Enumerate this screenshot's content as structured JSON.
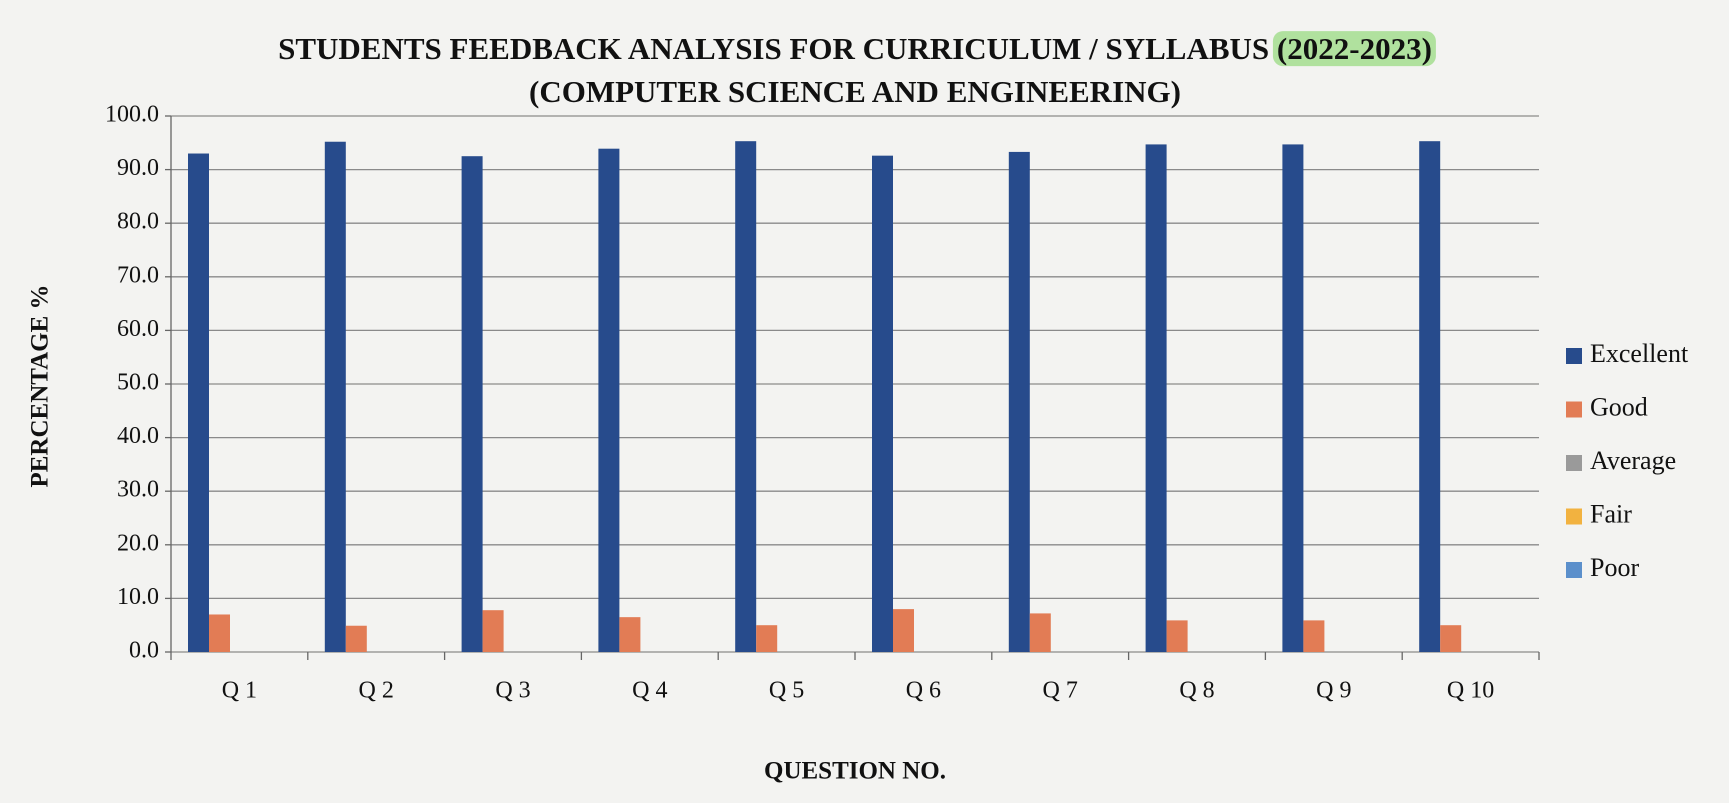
{
  "chart_data": {
    "type": "bar",
    "title": "STUDENTS FEEDBACK ANALYSIS FOR CURRICULUM / SYLLABUS (2022-2023)",
    "subtitle": "(COMPUTER SCIENCE AND ENGINEERING)",
    "x_label": "QUESTION NO.",
    "y_label": "PERCENTAGE %",
    "categories": [
      "Q 1",
      "Q 2",
      "Q 3",
      "Q 4",
      "Q 5",
      "Q 6",
      "Q 7",
      "Q 8",
      "Q 9",
      "Q 10"
    ],
    "series": [
      {
        "name": "Excellent",
        "color": "#274b8c",
        "values": [
          93.0,
          95.2,
          92.5,
          93.9,
          95.3,
          92.6,
          93.3,
          94.7,
          94.7,
          95.3
        ]
      },
      {
        "name": "Good",
        "color": "#e27c55",
        "values": [
          7.0,
          4.9,
          7.8,
          6.5,
          5.0,
          8.0,
          7.2,
          5.9,
          5.9,
          5.0
        ]
      },
      {
        "name": "Average",
        "color": "#9a9a9a",
        "values": [
          0,
          0,
          0,
          0,
          0,
          0,
          0,
          0,
          0,
          0
        ]
      },
      {
        "name": "Fair",
        "color": "#f2b240",
        "values": [
          0,
          0,
          0,
          0,
          0,
          0,
          0,
          0,
          0,
          0
        ]
      },
      {
        "name": "Poor",
        "color": "#5b8fcb",
        "values": [
          0,
          0,
          0,
          0,
          0,
          0,
          0,
          0,
          0,
          0
        ]
      }
    ],
    "ylim": [
      0,
      100
    ],
    "yticks": [
      {
        "value": 0,
        "label": "0.0"
      },
      {
        "value": 10,
        "label": "10.0"
      },
      {
        "value": 20,
        "label": "20.0"
      },
      {
        "value": 30,
        "label": "30.0"
      },
      {
        "value": 40,
        "label": "40.0"
      },
      {
        "value": 50,
        "label": "50.0"
      },
      {
        "value": 60,
        "label": "60.0"
      },
      {
        "value": 70,
        "label": "70.0"
      },
      {
        "value": 80,
        "label": "80.0"
      },
      {
        "value": 90,
        "label": "90.0"
      },
      {
        "value": 100,
        "label": "100.0"
      }
    ],
    "grid": true,
    "legend": "right"
  }
}
